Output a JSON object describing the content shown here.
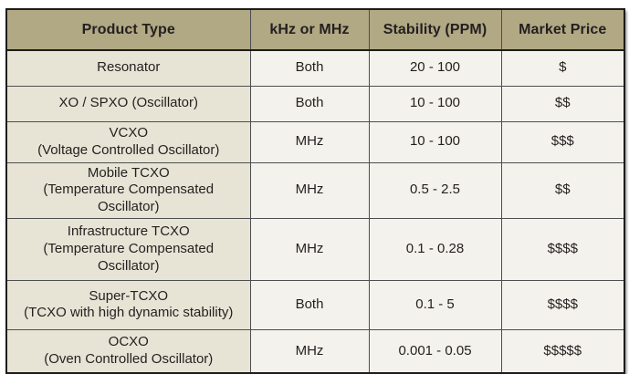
{
  "colors": {
    "header_bg": "#b1a884",
    "first_column_bg": "#e8e4d5",
    "cell_bg": "#f4f2ec",
    "text": "#231f20",
    "grid_line": "#4d4e50",
    "outer_border": "#1c1c1a"
  },
  "table": {
    "columns": [
      {
        "label": "Product Type"
      },
      {
        "label": "kHz or MHz"
      },
      {
        "label": "Stability (PPM)"
      },
      {
        "label": "Market Price"
      }
    ],
    "rows": [
      {
        "product": "Resonator",
        "product_detail": "",
        "band": "Both",
        "stability": "20 - 100",
        "price": "$"
      },
      {
        "product": "XO / SPXO  (Oscillator)",
        "product_detail": "",
        "band": "Both",
        "stability": "10 - 100",
        "price": "$$"
      },
      {
        "product": "VCXO",
        "product_detail": "(Voltage Controlled Oscillator)",
        "band": "MHz",
        "stability": "10 - 100",
        "price": "$$$"
      },
      {
        "product": "Mobile TCXO",
        "product_detail": "(Temperature Compensated Oscillator)",
        "band": "MHz",
        "stability": "0.5 - 2.5",
        "price": "$$"
      },
      {
        "product": "Infrastructure TCXO",
        "product_detail": "(Temperature Compensated Oscillator)",
        "band": "MHz",
        "stability": "0.1 - 0.28",
        "price": "$$$$"
      },
      {
        "product": "Super-TCXO",
        "product_detail": "(TCXO with high dynamic stability)",
        "band": "Both",
        "stability": "0.1 - 5",
        "price": "$$$$"
      },
      {
        "product": "OCXO",
        "product_detail": "(Oven Controlled Oscillator)",
        "band": "MHz",
        "stability": "0.001 - 0.05",
        "price": "$$$$$"
      }
    ]
  }
}
